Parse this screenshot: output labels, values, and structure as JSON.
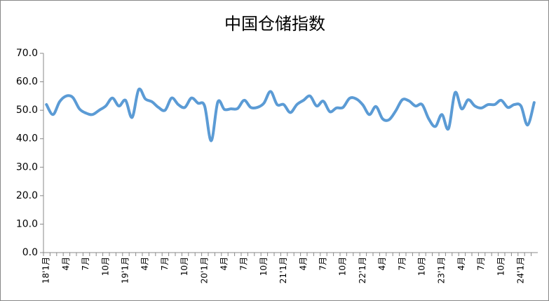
{
  "chart_data": {
    "type": "line",
    "title": "中国仓储指数",
    "categories": [
      "18'1月",
      null,
      null,
      "4月",
      null,
      null,
      "7月",
      null,
      null,
      "10月",
      null,
      null,
      "19'1月",
      null,
      null,
      "4月",
      null,
      null,
      "7月",
      null,
      null,
      "10月",
      null,
      null,
      "20'1月",
      null,
      null,
      "4月",
      null,
      null,
      "7月",
      null,
      null,
      "10月",
      null,
      null,
      "21'1月",
      null,
      null,
      "4月",
      null,
      null,
      "7月",
      null,
      null,
      "10月",
      null,
      null,
      "22'1月",
      null,
      null,
      "4月",
      null,
      null,
      "7月",
      null,
      null,
      "10月",
      null,
      null,
      "23'1月",
      null,
      null,
      "4月",
      null,
      null,
      "7月",
      null,
      null,
      "10月",
      null,
      null,
      "24'1月",
      null,
      null
    ],
    "values": [
      52.0,
      48.5,
      53.0,
      55.0,
      54.5,
      50.5,
      49.0,
      48.5,
      50.0,
      51.5,
      54.3,
      51.5,
      53.5,
      47.5,
      57.3,
      54.0,
      53.0,
      51.0,
      50.0,
      54.3,
      52.0,
      51.0,
      54.3,
      52.5,
      51.5,
      39.3,
      52.9,
      50.3,
      50.5,
      50.6,
      53.5,
      51.0,
      51.0,
      52.5,
      56.6,
      52.0,
      52.0,
      49.2,
      52.0,
      53.5,
      55.0,
      51.5,
      53.2,
      49.5,
      50.8,
      51.0,
      54.2,
      54.0,
      51.9,
      48.5,
      51.3,
      47.0,
      46.7,
      49.8,
      53.7,
      53.3,
      51.5,
      52.0,
      47.0,
      44.3,
      48.5,
      43.5,
      56.2,
      50.5,
      53.7,
      51.5,
      50.8,
      52.0,
      52.0,
      53.5,
      51.0,
      52.0,
      51.5,
      44.8,
      52.7
    ],
    "color": "#5b9bd5",
    "ylim": [
      0,
      70
    ],
    "yticks": [
      {
        "value": 0,
        "label": "0.0"
      },
      {
        "value": 10,
        "label": "10.0"
      },
      {
        "value": 20,
        "label": "20.0"
      },
      {
        "value": 30,
        "label": "30.0"
      },
      {
        "value": 40,
        "label": "40.0"
      },
      {
        "value": 50,
        "label": "50.0"
      },
      {
        "value": 60,
        "label": "60.0"
      },
      {
        "value": 70,
        "label": "70.0"
      }
    ]
  }
}
